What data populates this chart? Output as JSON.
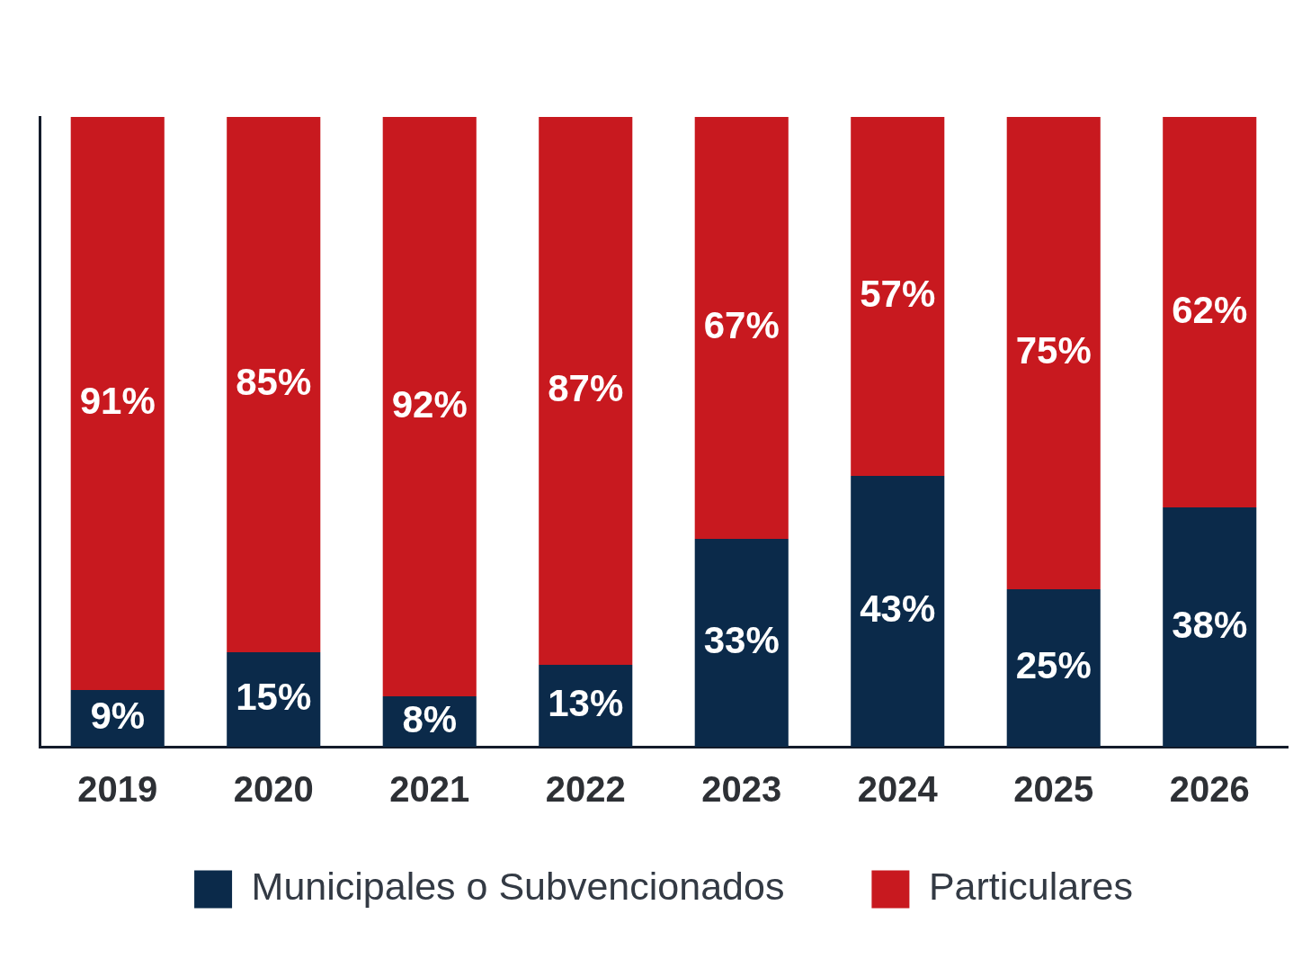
{
  "chart_data": {
    "type": "bar",
    "categories": [
      "2019",
      "2020",
      "2021",
      "2022",
      "2023",
      "2024",
      "2025",
      "2026"
    ],
    "stacked": true,
    "series": [
      {
        "name": "Municipales o Subvencionados",
        "color": "#0b2a4a",
        "values": [
          9,
          15,
          8,
          13,
          33,
          43,
          25,
          38
        ],
        "value_labels": [
          "9%",
          "15%",
          "8%",
          "13%",
          "33%",
          "43%",
          "25%",
          "38%"
        ]
      },
      {
        "name": "Particulares",
        "color": "#c8191f",
        "values": [
          91,
          85,
          92,
          87,
          67,
          57,
          75,
          62
        ],
        "value_labels": [
          "91%",
          "85%",
          "92%",
          "87%",
          "67%",
          "57%",
          "75%",
          "62%"
        ]
      }
    ],
    "ylim": [
      0,
      100
    ],
    "tick_labels": "x",
    "grid": false,
    "legend": "bottom"
  }
}
